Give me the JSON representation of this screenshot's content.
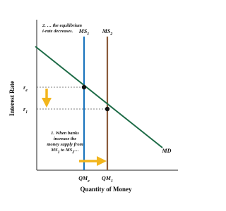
{
  "axes": {
    "y_title": "Interest Rate",
    "x_title": "Quantity of Money"
  },
  "curves": {
    "ms_before": [
      [
        "MS",
        "1"
      ]
    ],
    "ms_after": [
      [
        "MS",
        "2"
      ]
    ],
    "demand": [
      [
        "MD"
      ]
    ]
  },
  "axis_labels": {
    "rate_initial": [
      [
        "r",
        "e"
      ]
    ],
    "rate_new": [
      [
        "r",
        "1"
      ]
    ],
    "quantity_initial": [
      [
        "QM",
        "e"
      ]
    ],
    "quantity_new": [
      [
        "QM",
        "1"
      ]
    ]
  },
  "annotations": {
    "step_2": [
      [
        "2. … the equilibrium"
      ],
      [
        "i-rate decreases."
      ]
    ],
    "step_1": [
      [
        "1. When banks"
      ],
      [
        "increase the"
      ],
      [
        "money supply from"
      ],
      [
        "MS",
        "1",
        " to MS",
        "2",
        "…"
      ]
    ]
  }
}
